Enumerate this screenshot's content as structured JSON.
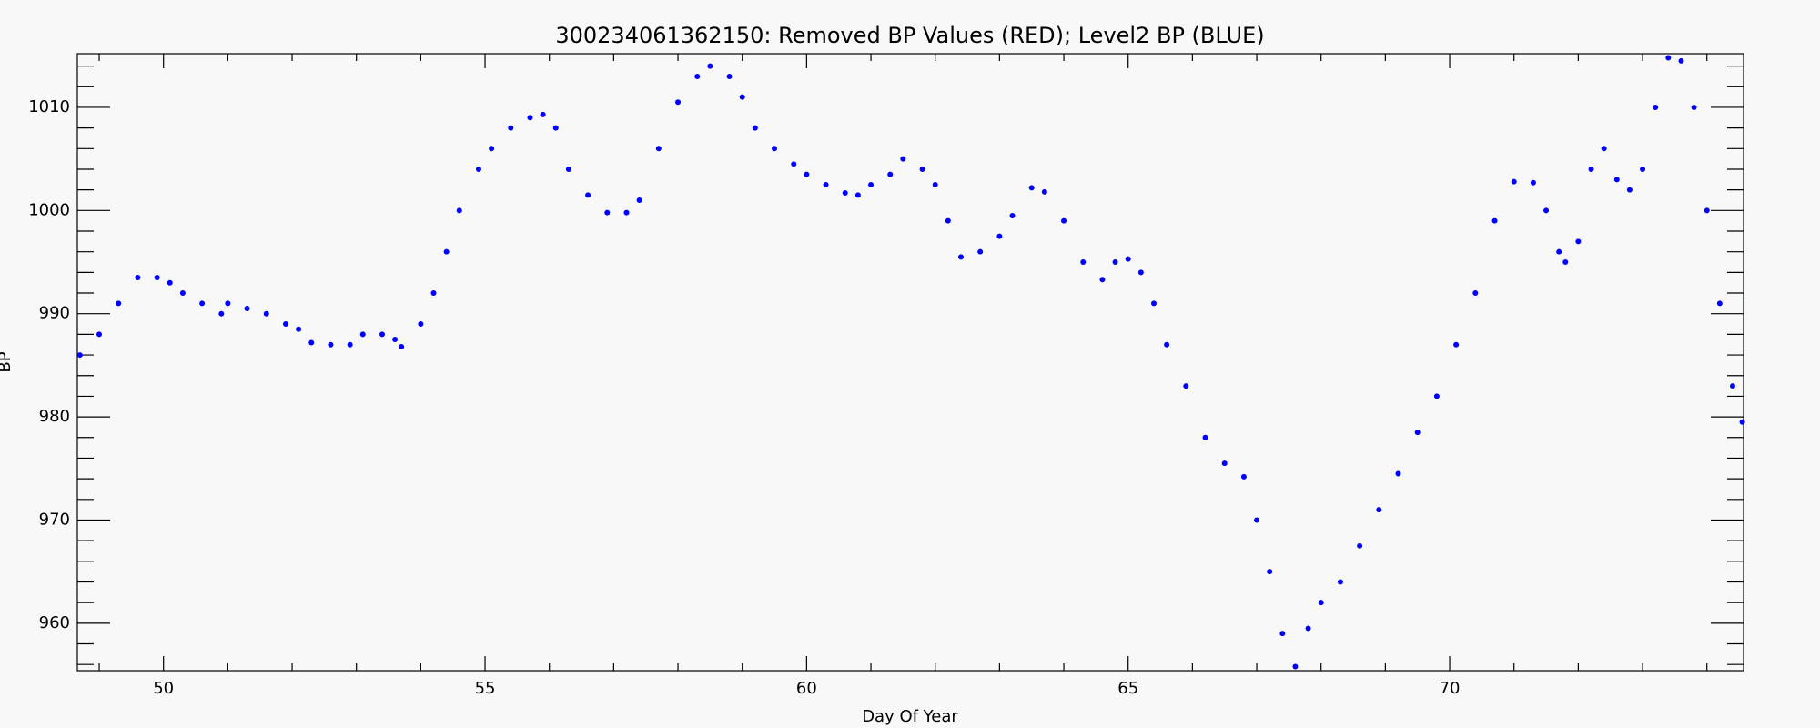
{
  "chart_data": {
    "type": "scatter",
    "title": "300234061362150: Removed BP Values (RED); Level2 BP (BLUE)",
    "xlabel": "Day Of Year",
    "ylabel": "BP",
    "color": "#0000ff",
    "xlim": [
      48.66,
      74.57
    ],
    "ylim": [
      955.4,
      1015.2
    ],
    "xticks": [
      50,
      55,
      60,
      65,
      70
    ],
    "yticks": [
      960,
      970,
      980,
      990,
      1000,
      1010
    ],
    "xminorticks": [
      49,
      51,
      52,
      53,
      54,
      56,
      57,
      58,
      59,
      61,
      62,
      63,
      64,
      66,
      67,
      68,
      69,
      71,
      72,
      73,
      74
    ],
    "yminorticks": [
      956,
      958,
      962,
      964,
      966,
      968,
      972,
      974,
      976,
      978,
      982,
      984,
      986,
      988,
      992,
      994,
      996,
      998,
      1002,
      1004,
      1006,
      1008,
      1012,
      1014
    ],
    "x": [
      48.7,
      49.0,
      49.3,
      49.6,
      49.9,
      50.1,
      50.3,
      50.6,
      50.9,
      51.0,
      51.3,
      51.6,
      51.9,
      52.1,
      52.3,
      52.6,
      52.9,
      53.1,
      53.4,
      53.6,
      53.7,
      54.0,
      54.2,
      54.4,
      54.6,
      54.9,
      55.1,
      55.4,
      55.7,
      55.9,
      56.1,
      56.3,
      56.6,
      56.9,
      57.2,
      57.4,
      57.7,
      58.0,
      58.3,
      58.5,
      58.8,
      59.0,
      59.2,
      59.5,
      59.8,
      60.0,
      60.3,
      60.6,
      60.8,
      61.0,
      61.3,
      61.5,
      61.8,
      62.0,
      62.2,
      62.4,
      62.7,
      63.0,
      63.2,
      63.5,
      63.7,
      64.0,
      64.3,
      64.6,
      64.8,
      65.0,
      65.2,
      65.4,
      65.6,
      65.9,
      66.2,
      66.5,
      66.8,
      67.0,
      67.2,
      67.4,
      67.6,
      67.8,
      68.0,
      68.3,
      68.6,
      68.9,
      69.2,
      69.5,
      69.8,
      70.1,
      70.4,
      70.7,
      71.0,
      71.3,
      71.5,
      71.7,
      71.8,
      72.0,
      72.2,
      72.4,
      72.6,
      72.8,
      73.0,
      73.2,
      73.4,
      73.6,
      73.8,
      74.0,
      74.2,
      74.4,
      74.55
    ],
    "values": [
      986,
      988,
      991,
      993.5,
      993.5,
      993,
      992,
      991,
      990,
      991,
      990.5,
      990,
      989,
      988.5,
      987.2,
      987,
      987,
      988,
      988,
      987.5,
      986.8,
      989,
      992,
      996,
      1000,
      1004,
      1006,
      1008,
      1009,
      1009.3,
      1008,
      1004,
      1001.5,
      999.8,
      999.8,
      1001,
      1006,
      1010.5,
      1013,
      1014,
      1013,
      1011,
      1008,
      1006,
      1004.5,
      1003.5,
      1002.5,
      1001.7,
      1001.5,
      1002.5,
      1003.5,
      1005,
      1004,
      1002.5,
      999,
      995.5,
      996,
      997.5,
      999.5,
      1002.2,
      1001.8,
      999,
      995,
      993.3,
      995,
      995.3,
      994,
      991,
      987,
      983,
      978,
      975.5,
      974.2,
      970,
      965,
      959,
      955.8,
      959.5,
      962,
      964,
      967.5,
      971,
      974.5,
      978.5,
      982,
      987,
      992,
      999,
      1002.8,
      1002.7,
      1000,
      996,
      995,
      997,
      1004,
      1006,
      1003,
      1002,
      1004,
      1010,
      1014.8,
      1014.5,
      1010,
      1000,
      991,
      983,
      979.5
    ]
  }
}
